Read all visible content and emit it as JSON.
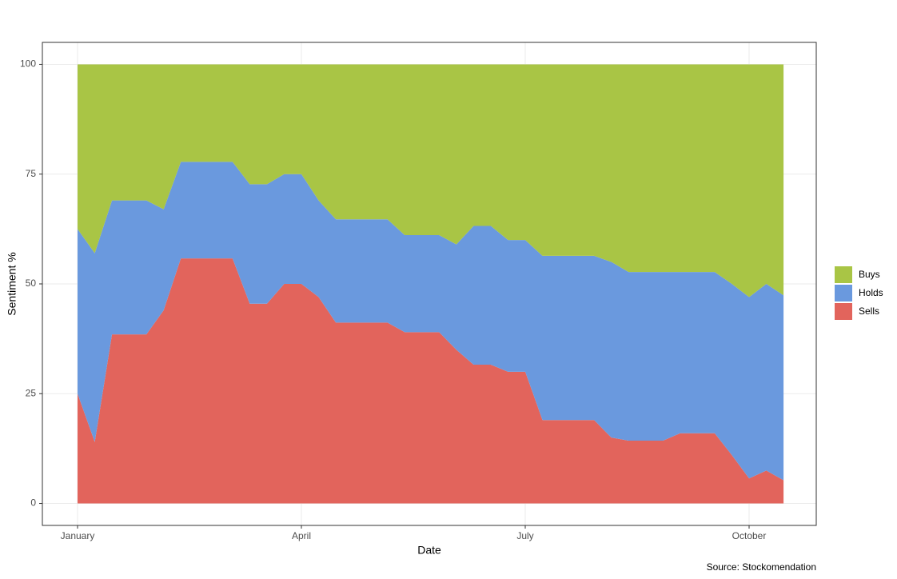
{
  "chart_data": {
    "type": "stacked_area",
    "x_label": "Date",
    "y_label": "Sentiment %",
    "caption": "Source: Stockomendation",
    "categories": [
      "January",
      null,
      null,
      null,
      null,
      null,
      null,
      null,
      null,
      null,
      null,
      null,
      null,
      "April",
      null,
      null,
      null,
      null,
      null,
      null,
      null,
      null,
      null,
      null,
      null,
      null,
      "July",
      null,
      null,
      null,
      null,
      null,
      null,
      null,
      null,
      null,
      null,
      null,
      null,
      "October",
      null,
      null
    ],
    "series": [
      {
        "name": "Buys",
        "color": "#a9c545",
        "values": [
          37.5,
          43,
          31,
          31,
          31,
          33,
          22.2,
          22.2,
          22.2,
          22.2,
          27.3,
          27.3,
          25,
          25,
          31,
          35.3,
          35.3,
          35.3,
          35.3,
          38.9,
          38.9,
          38.9,
          41,
          36.8,
          36.8,
          40,
          40,
          43.6,
          43.6,
          43.6,
          43.6,
          45,
          47.3,
          47.3,
          47.3,
          47.3,
          47.3,
          47.3,
          50,
          53,
          50,
          52.6
        ]
      },
      {
        "name": "Holds",
        "color": "#6a99de",
        "values": [
          37.5,
          43,
          30.5,
          30.5,
          30.5,
          23,
          22,
          22,
          22,
          22,
          27.2,
          27.2,
          25,
          25,
          22,
          23.5,
          23.5,
          23.5,
          23.5,
          22.1,
          22.1,
          22.1,
          24,
          31.6,
          31.6,
          30,
          30,
          37.4,
          37.4,
          37.4,
          37.4,
          40,
          38.4,
          38.4,
          38.4,
          36.7,
          36.7,
          36.7,
          39,
          41.3,
          42.5,
          42.1
        ]
      },
      {
        "name": "Sells",
        "color": "#e2645c",
        "values": [
          25,
          14,
          38.5,
          38.5,
          38.5,
          44,
          55.8,
          55.8,
          55.8,
          55.8,
          45.5,
          45.5,
          50,
          50,
          47,
          41.2,
          41.2,
          41.2,
          41.2,
          39,
          39,
          39,
          35,
          31.6,
          31.6,
          30,
          30,
          19,
          19,
          19,
          19,
          15,
          14.3,
          14.3,
          14.3,
          16,
          16,
          16,
          11,
          5.7,
          7.5,
          5.3
        ]
      }
    ],
    "ylim": [
      -5,
      105
    ],
    "yticks": [
      0,
      25,
      50,
      75,
      100
    ],
    "grid": true
  }
}
